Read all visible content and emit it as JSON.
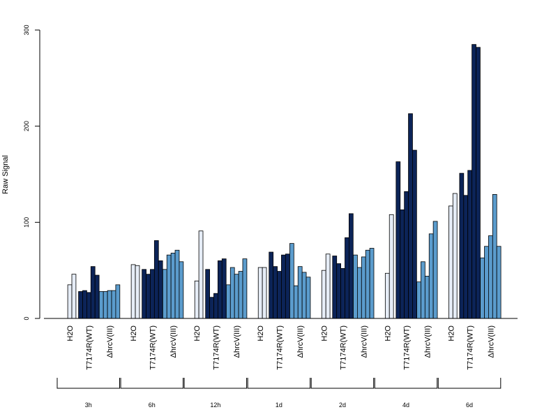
{
  "chart_data": {
    "type": "bar",
    "title": "",
    "xlabel": "",
    "ylabel": "Raw Signal",
    "ylim": [
      0,
      300
    ],
    "yticks": [
      0,
      100,
      200,
      300
    ],
    "grid": false,
    "legend": "none",
    "colors": {
      "H2O": "#e6edf7",
      "T7174R(WT)": "#0c2458",
      "ΔhrcV(III)": "#5b9ccd"
    },
    "groups": [
      {
        "time": "3h",
        "subgroups": [
          {
            "label": "H2O",
            "values": [
              0,
              35,
              46
            ]
          },
          {
            "label": "T7174R(WT)",
            "values": [
              28,
              29,
              27,
              54,
              45
            ]
          },
          {
            "label": "ΔhrcV(III)",
            "values": [
              28,
              28,
              29,
              29,
              35
            ]
          }
        ]
      },
      {
        "time": "6h",
        "subgroups": [
          {
            "label": "H2O",
            "values": [
              0,
              56,
              55
            ]
          },
          {
            "label": "T7174R(WT)",
            "values": [
              51,
              46,
              51,
              81,
              60
            ]
          },
          {
            "label": "ΔhrcV(III)",
            "values": [
              51,
              66,
              68,
              71,
              59
            ]
          }
        ]
      },
      {
        "time": "12h",
        "subgroups": [
          {
            "label": "H2O",
            "values": [
              0,
              39,
              91
            ]
          },
          {
            "label": "T7174R(WT)",
            "values": [
              51,
              22,
              26,
              60,
              62
            ]
          },
          {
            "label": "ΔhrcV(III)",
            "values": [
              35,
              53,
              46,
              49,
              62
            ]
          }
        ]
      },
      {
        "time": "1d",
        "subgroups": [
          {
            "label": "H2O",
            "values": [
              0,
              53,
              53
            ]
          },
          {
            "label": "T7174R(WT)",
            "values": [
              69,
              54,
              49,
              66,
              67
            ]
          },
          {
            "label": "ΔhrcV(III)",
            "values": [
              78,
              34,
              54,
              48,
              43
            ]
          }
        ]
      },
      {
        "time": "2d",
        "subgroups": [
          {
            "label": "H2O",
            "values": [
              0,
              50,
              67
            ]
          },
          {
            "label": "T7174R(WT)",
            "values": [
              65,
              57,
              52,
              84,
              109
            ]
          },
          {
            "label": "ΔhrcV(III)",
            "values": [
              66,
              53,
              64,
              71,
              73
            ]
          }
        ]
      },
      {
        "time": "4d",
        "subgroups": [
          {
            "label": "H2O",
            "values": [
              0,
              47,
              108
            ]
          },
          {
            "label": "T7174R(WT)",
            "values": [
              163,
              113,
              132,
              213,
              175
            ]
          },
          {
            "label": "ΔhrcV(III)",
            "values": [
              38,
              59,
              44,
              88,
              101
            ]
          }
        ]
      },
      {
        "time": "6d",
        "subgroups": [
          {
            "label": "H2O",
            "values": [
              0,
              117,
              130
            ]
          },
          {
            "label": "T7174R(WT)",
            "values": [
              151,
              128,
              154,
              285,
              282
            ]
          },
          {
            "label": "ΔhrcV(III)",
            "values": [
              63,
              75,
              86,
              129,
              75
            ]
          }
        ]
      }
    ]
  }
}
